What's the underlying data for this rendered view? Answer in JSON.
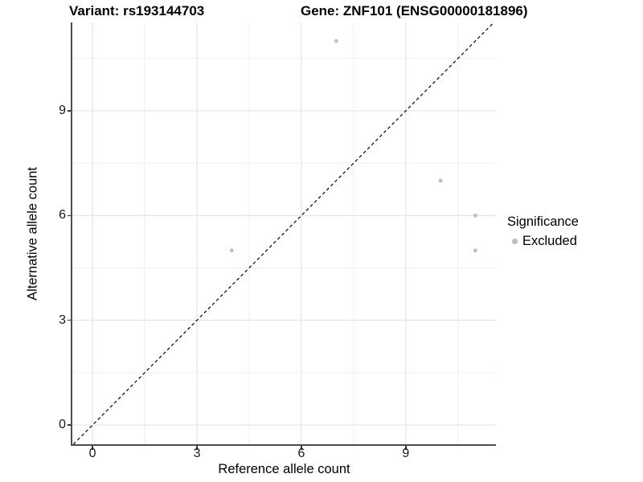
{
  "chart_data": {
    "type": "scatter",
    "title_left": "Variant: rs193144703",
    "title_right": "Gene: ZNF101 (ENSG00000181896)",
    "xlabel": "Reference allele count",
    "ylabel": "Alternative allele count",
    "x_ticks": [
      0,
      3,
      6,
      9
    ],
    "y_ticks": [
      0,
      3,
      6,
      9
    ],
    "tick_step": 3,
    "xlim": [
      -0.58,
      11.59
    ],
    "ylim": [
      -0.55,
      11.53
    ],
    "grid": true,
    "legend_position": "right-middle",
    "legend": {
      "title": "Significance",
      "items": [
        {
          "label": "Excluded",
          "color": "#bdbdbd"
        }
      ]
    },
    "series": [
      {
        "name": "Excluded",
        "color": "#bdbdbd",
        "point_radius": 2.4,
        "points": [
          [
            7,
            11
          ],
          [
            10,
            7
          ],
          [
            11,
            6
          ],
          [
            11,
            5
          ],
          [
            4,
            5
          ]
        ]
      }
    ],
    "reference_line": {
      "type": "identity",
      "equation": "y = x",
      "style": "dashed",
      "color": "#000000"
    }
  },
  "style_colors": {
    "grid_major": "#e3e3e3",
    "grid_minor": "#efefef",
    "axis_line": "#4d4d4d",
    "tick_mark": "#333333",
    "point": "#bdbdbd"
  }
}
